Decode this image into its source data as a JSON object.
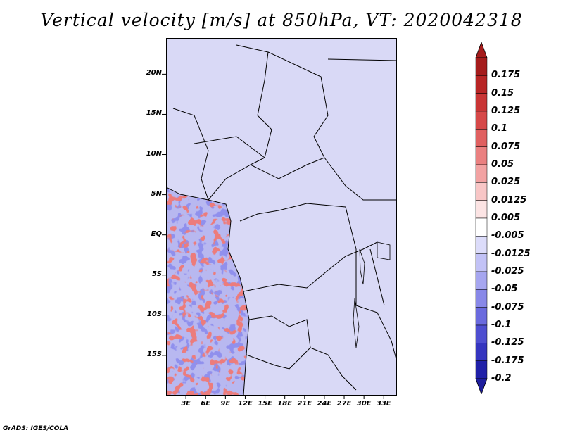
{
  "title": "Vertical velocity [m/s] at 850hPa, VT: 2020042318",
  "credit": "GrADS: IGES/COLA",
  "map": {
    "latitude_labels": [
      {
        "label": "20N",
        "lat": 20
      },
      {
        "label": "15N",
        "lat": 15
      },
      {
        "label": "10N",
        "lat": 10
      },
      {
        "label": "5N",
        "lat": 5
      },
      {
        "label": "EQ",
        "lat": 0
      },
      {
        "label": "5S",
        "lat": -5
      },
      {
        "label": "10S",
        "lat": -10
      },
      {
        "label": "15S",
        "lat": -15
      }
    ],
    "longitude_labels": [
      {
        "label": "3E",
        "lon": 3
      },
      {
        "label": "6E",
        "lon": 6
      },
      {
        "label": "9E",
        "lon": 9
      },
      {
        "label": "12E",
        "lon": 12
      },
      {
        "label": "15E",
        "lon": 15
      },
      {
        "label": "18E",
        "lon": 18
      },
      {
        "label": "21E",
        "lon": 21
      },
      {
        "label": "24E",
        "lon": 24
      },
      {
        "label": "27E",
        "lon": 27
      },
      {
        "label": "30E",
        "lon": 30
      },
      {
        "label": "33E",
        "lon": 33
      }
    ],
    "lon_range": [
      0,
      35
    ],
    "lat_range": [
      -20,
      24.5
    ]
  },
  "colorbar": {
    "levels": [
      {
        "label": "0.175",
        "color": "#a51c1c"
      },
      {
        "label": "0.15",
        "color": "#b82525"
      },
      {
        "label": "0.125",
        "color": "#c93535"
      },
      {
        "label": "0.1",
        "color": "#d64848"
      },
      {
        "label": "0.075",
        "color": "#e06060"
      },
      {
        "label": "0.05",
        "color": "#ea8080"
      },
      {
        "label": "0.025",
        "color": "#f2a2a2"
      },
      {
        "label": "0.0125",
        "color": "#f8c6c6"
      },
      {
        "label": "0.005",
        "color": "#fce4e4"
      },
      {
        "label": "-0.005",
        "color": "#ffffff"
      },
      {
        "label": "-0.0125",
        "color": "#dcdcfa"
      },
      {
        "label": "-0.025",
        "color": "#c2c2f6"
      },
      {
        "label": "-0.05",
        "color": "#a6a6f0"
      },
      {
        "label": "-0.075",
        "color": "#8888e8"
      },
      {
        "label": "-0.1",
        "color": "#6a6ade"
      },
      {
        "label": "-0.125",
        "color": "#4e4ed0"
      },
      {
        "label": "-0.175",
        "color": "#3535bf"
      },
      {
        "label": "-0.2",
        "color": "#2020a8"
      }
    ],
    "top_color": "#a51c1c",
    "bottom_color": "#1e1e9e"
  }
}
